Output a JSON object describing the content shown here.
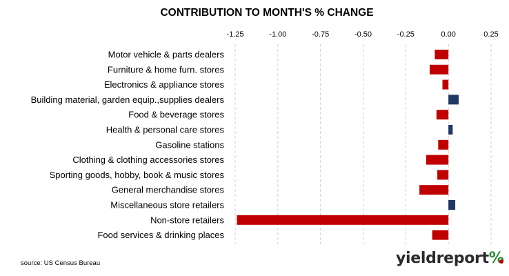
{
  "chart_data": {
    "type": "bar",
    "orientation": "horizontal",
    "title": "CONTRIBUTION TO MONTH'S % CHANGE",
    "xlim": [
      -1.25,
      0.25
    ],
    "ticks": [
      "-1.25",
      "-1.00",
      "-0.75",
      "-0.50",
      "-0.25",
      "0.00",
      "0.25"
    ],
    "tick_values": [
      -1.25,
      -1.0,
      -0.75,
      -0.5,
      -0.25,
      0,
      0.25
    ],
    "grid": true,
    "categories": [
      "Motor vehicle & parts dealers",
      "Furniture & home furn. stores",
      "Electronics & appliance stores",
      "Building material, garden equip.,supplies dealers",
      "Food & beverage stores",
      "Health & personal care stores",
      "Gasoline stations",
      "Clothing & clothing accessories stores",
      "Sporting goods, hobby, book & music stores",
      "General merchandise stores",
      "Miscellaneous store retailers",
      "Non-store retailers",
      "Food services & drinking places"
    ],
    "values": [
      -0.08,
      -0.11,
      -0.035,
      0.06,
      -0.07,
      0.025,
      -0.06,
      -0.13,
      -0.065,
      -0.17,
      0.04,
      -1.24,
      -0.095
    ],
    "colors": {
      "negative": "#c00000",
      "positive": "#1f3864"
    }
  },
  "source": "source: US Census Bureau",
  "brand": {
    "text": "yieldreport",
    "suffix": "%"
  }
}
